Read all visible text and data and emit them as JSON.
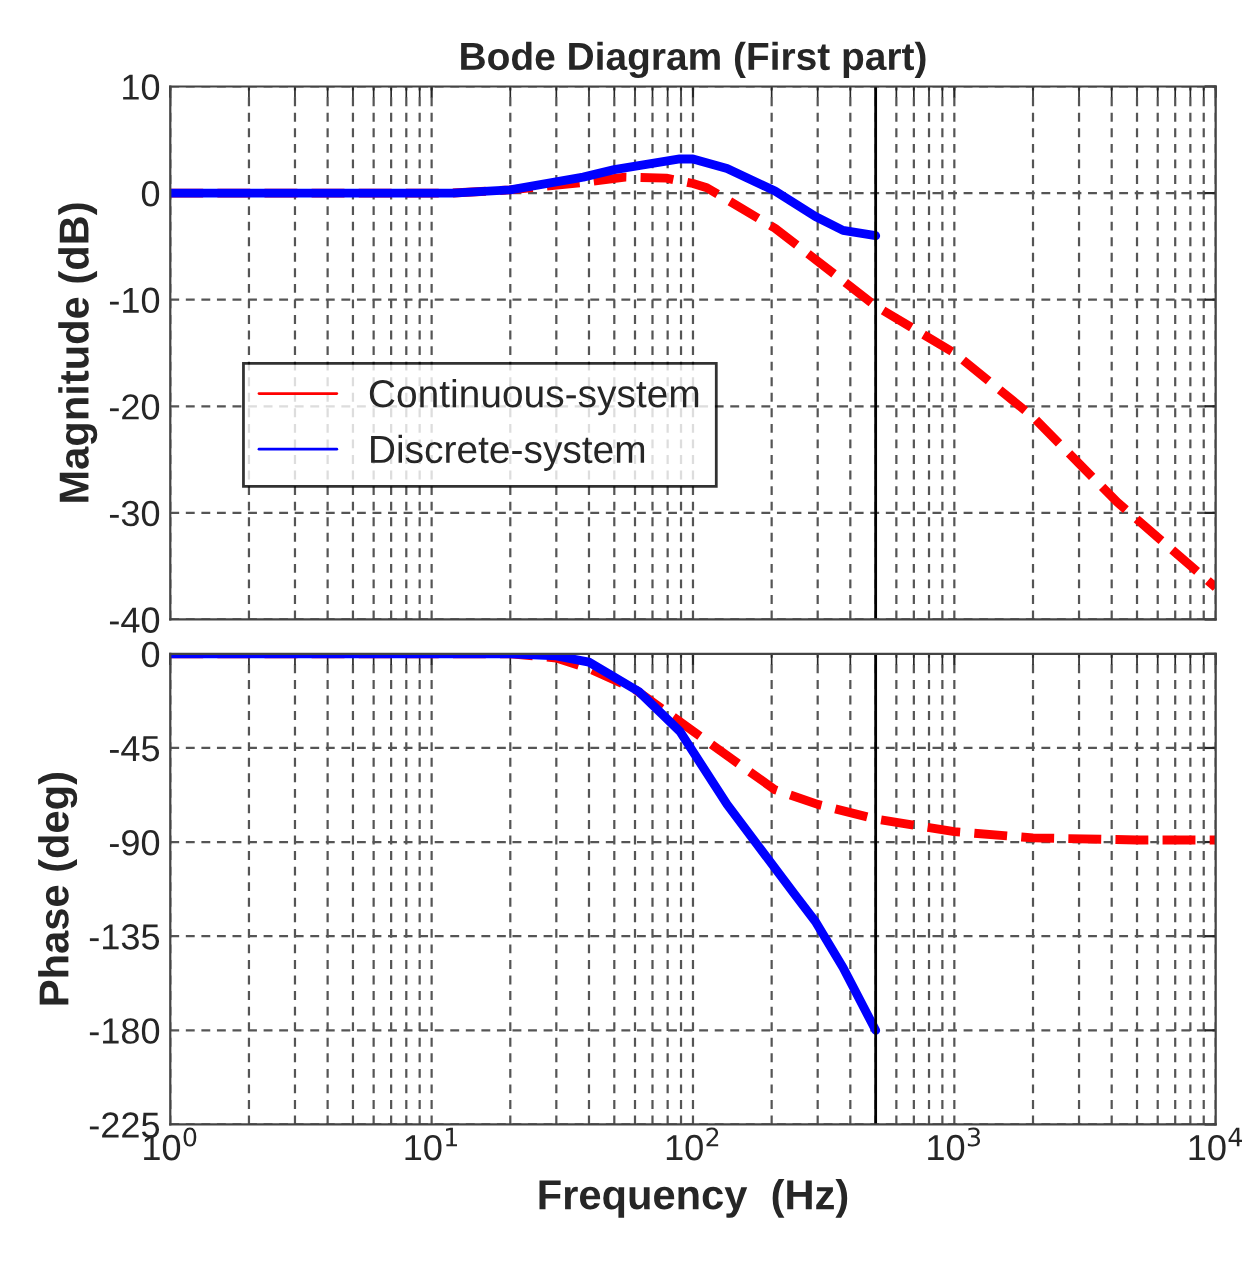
{
  "chart_data": [
    {
      "type": "line",
      "title": "Bode Diagram (First part)",
      "ylabel": "Magnitude (dB)",
      "log": "x",
      "xlim": [
        1,
        10000
      ],
      "xticks": [
        {
          "value": 1,
          "label": null
        },
        {
          "value": 10,
          "label": null
        },
        {
          "value": 100,
          "label": null
        },
        {
          "value": 1000,
          "label": null
        },
        {
          "value": 10000,
          "label": null
        }
      ],
      "ylim": [
        -40,
        10
      ],
      "yticks": [
        -40,
        -30,
        -20,
        -10,
        0,
        10
      ],
      "tick_labels": "y",
      "grid": true,
      "legend": "left",
      "ref_lines": [
        {
          "axis": "x",
          "value": 500,
          "color": "#000000",
          "line_style": "solid"
        }
      ],
      "series": [
        {
          "name": "Continuous-system",
          "color": "#ff0000",
          "line_style": "dashed",
          "x": [
            1,
            12,
            20,
            38,
            55,
            79,
            100,
            113,
            206,
            500,
            1000,
            2000,
            4200,
            10000
          ],
          "values": [
            0,
            0,
            0.3,
            1,
            1.5,
            1.4,
            0.9,
            0.5,
            -3.3,
            -10.6,
            -15,
            -21,
            -29,
            -37
          ]
        },
        {
          "name": "Discrete-system",
          "color": "#0000ff",
          "line_style": "solid",
          "x": [
            1,
            12,
            20,
            38,
            50,
            89,
            100,
            135,
            206,
            294,
            375,
            500
          ],
          "values": [
            0,
            0,
            0.3,
            1.5,
            2.2,
            3.2,
            3.2,
            2.3,
            0.2,
            -2.2,
            -3.5,
            -4
          ]
        }
      ]
    },
    {
      "type": "line",
      "xlabel": "Frequency  (Hz)",
      "ylabel": "Phase (deg)",
      "log": "x",
      "xlim": [
        1,
        10000
      ],
      "xticks": [
        {
          "value": 1,
          "label": "10$^{0}$"
        },
        {
          "value": 10,
          "label": "10$^{1}$"
        },
        {
          "value": 100,
          "label": "10$^{2}$"
        },
        {
          "value": 1000,
          "label": "10$^{3}$"
        },
        {
          "value": 10000,
          "label": "10$^{4}$"
        }
      ],
      "ylim": [
        -225,
        0
      ],
      "yticks": [
        -225,
        -180,
        -135,
        -90,
        -45,
        0
      ],
      "grid": true,
      "ref_lines": [
        {
          "axis": "x",
          "value": 500,
          "color": "#000000",
          "line_style": "solid"
        }
      ],
      "series": [
        {
          "color": "#ff0000",
          "line_style": "dashed",
          "x": [
            1,
            20,
            30,
            40,
            60,
            100,
            206,
            300,
            500,
            1000,
            2000,
            5000,
            10000
          ],
          "values": [
            0,
            0,
            -2,
            -7,
            -17,
            -37,
            -65,
            -72,
            -79,
            -85,
            -88,
            -89,
            -89
          ]
        },
        {
          "color": "#0000ff",
          "line_style": "solid",
          "x": [
            1,
            20,
            30,
            40,
            62,
            89,
            135,
            245,
            294,
            375,
            500
          ],
          "values": [
            0,
            0,
            -1,
            -4,
            -18,
            -37,
            -72,
            -115,
            -128,
            -150,
            -180
          ]
        }
      ]
    }
  ]
}
